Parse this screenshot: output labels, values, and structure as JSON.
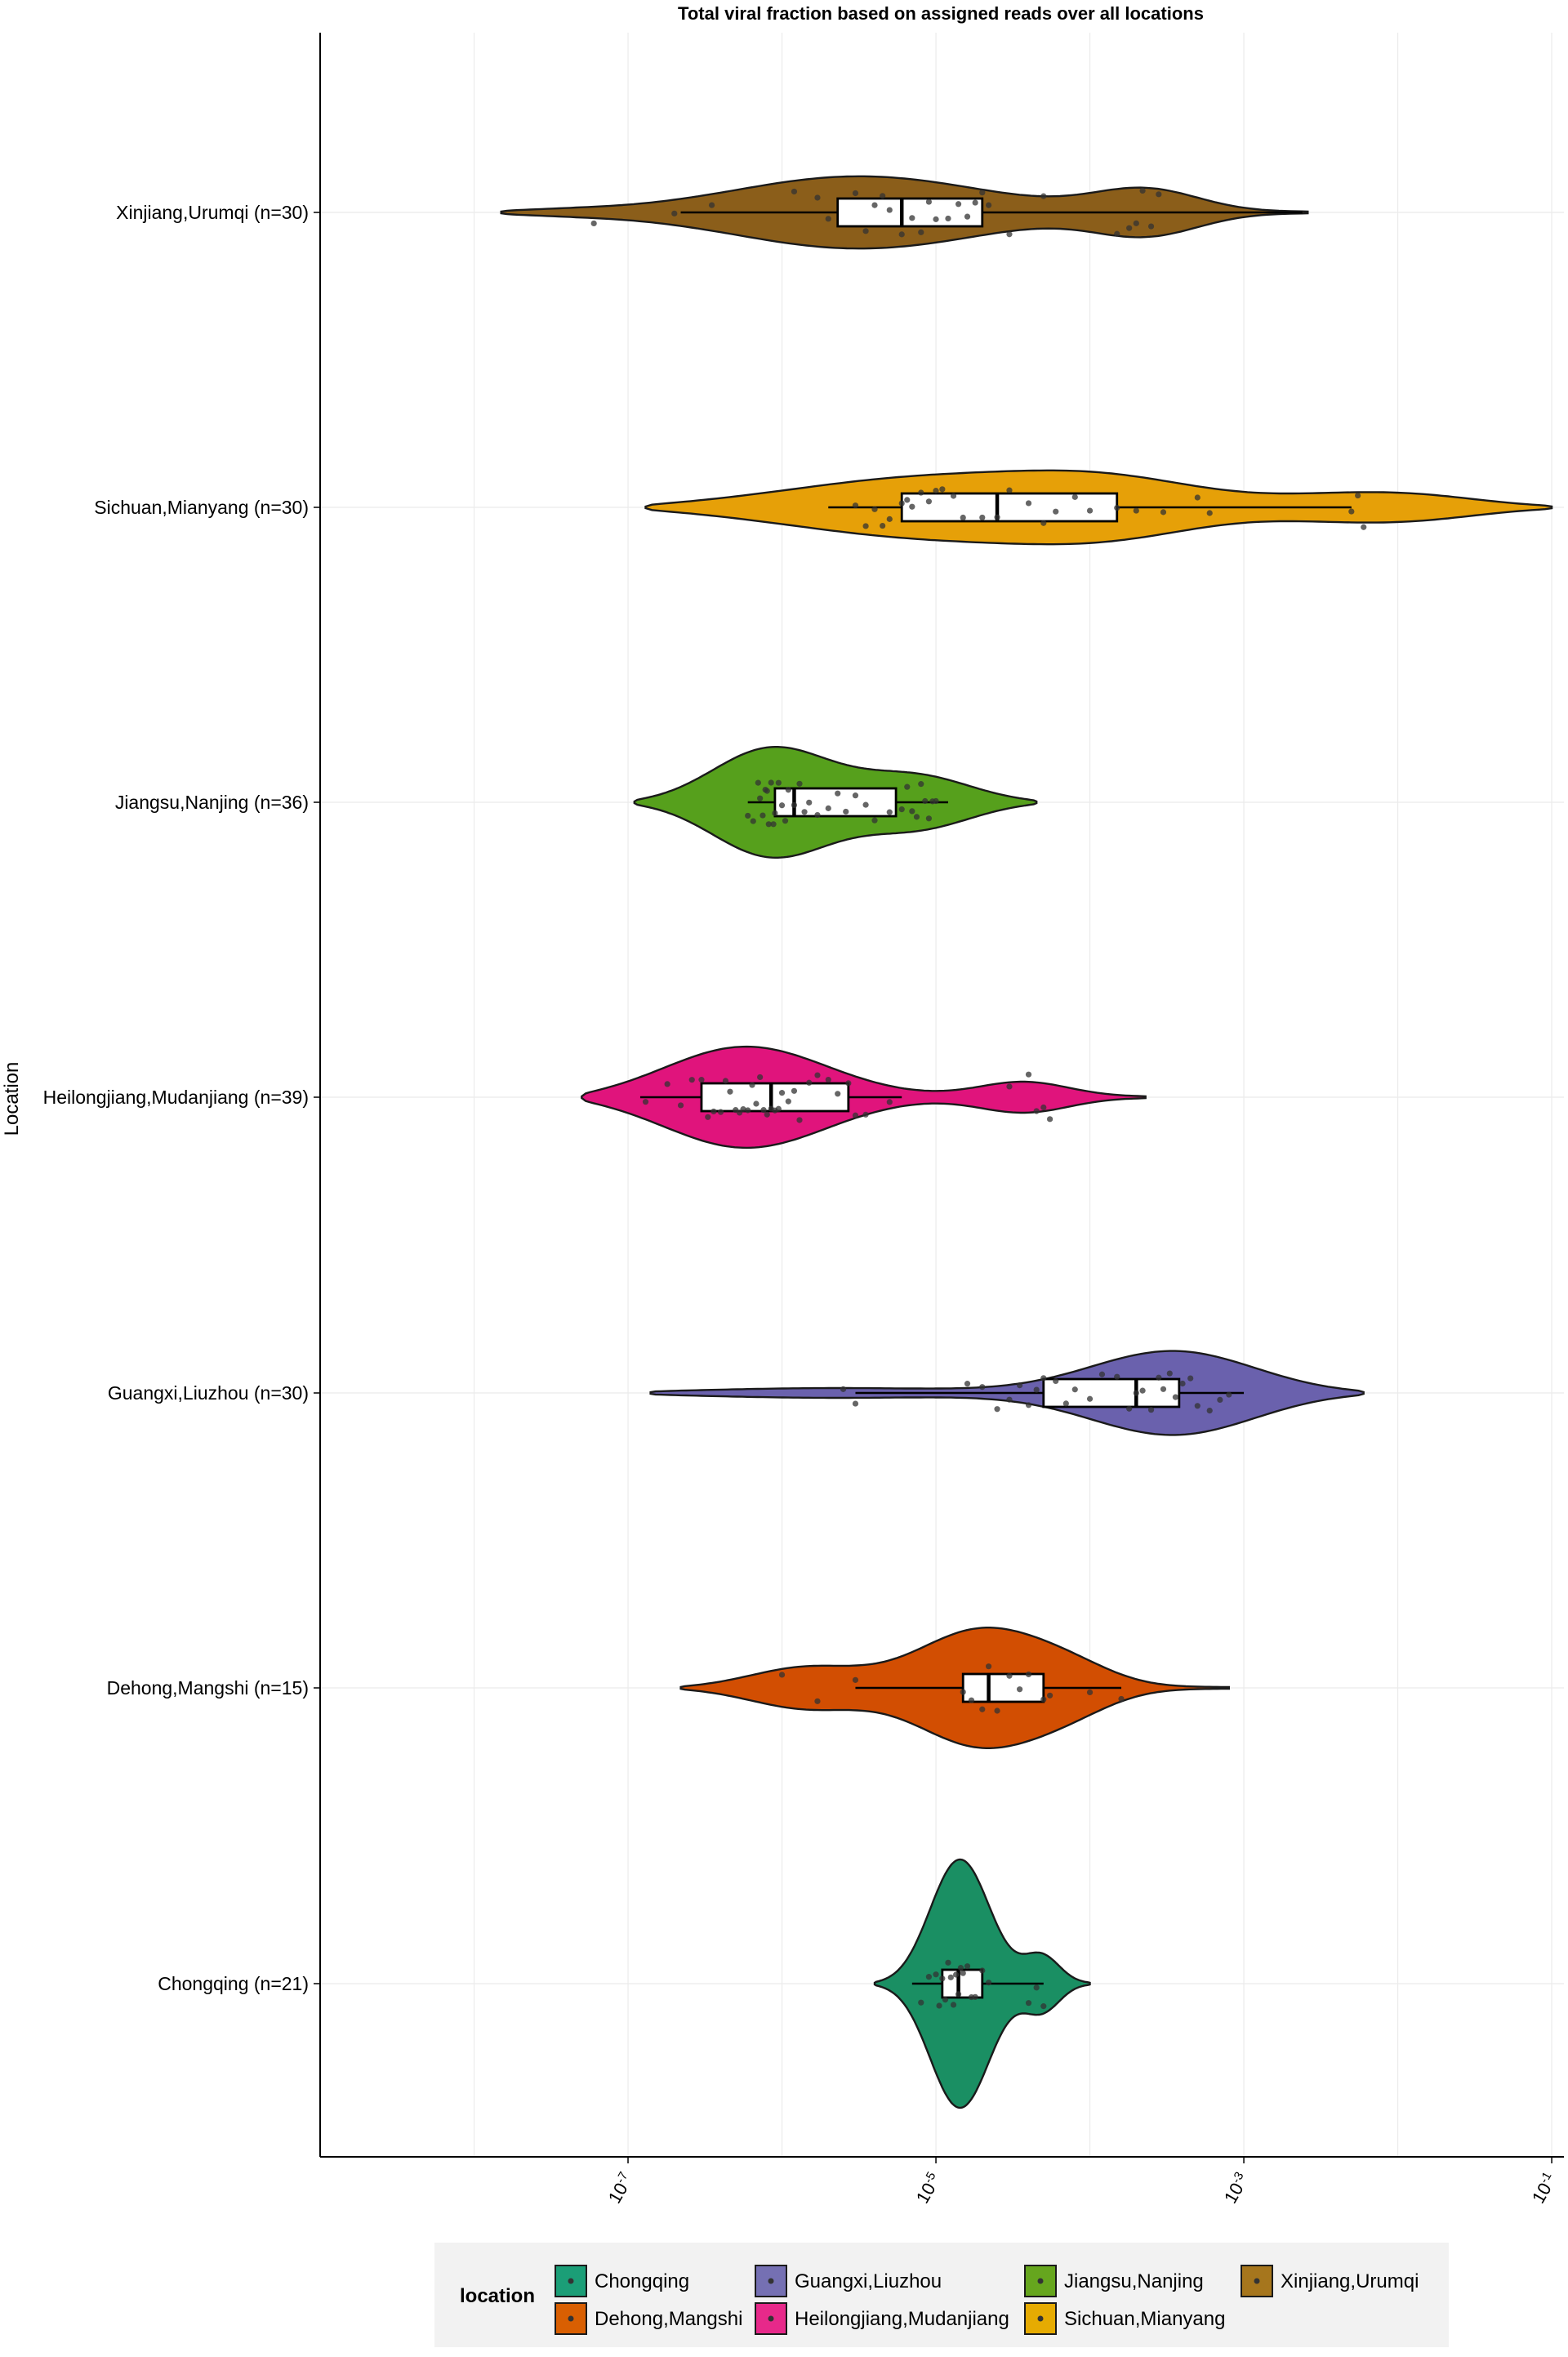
{
  "chart_data": {
    "type": "violin",
    "title": "Total viral fraction based on assigned reads over all locations",
    "xlabel": "",
    "ylabel": "Location",
    "x_scale": "log10",
    "xlim": [
      1e-09,
      0.12
    ],
    "x_ticks": [
      1e-07,
      1e-05,
      0.001,
      0.1
    ],
    "x_tick_base": "10",
    "x_tick_exponents": [
      "-7",
      "-5",
      "-3",
      "-1"
    ],
    "grid": true,
    "legend": {
      "title": "location",
      "position": "bottom",
      "entries": [
        {
          "name": "Chongqing",
          "color": "#1b9e77"
        },
        {
          "name": "Dehong,Mangshi",
          "color": "#d95f02"
        },
        {
          "name": "Guangxi,Liuzhou",
          "color": "#7570b3"
        },
        {
          "name": "Heilongjiang,Mudanjiang",
          "color": "#e7298a"
        },
        {
          "name": "Jiangsu,Nanjing",
          "color": "#66a61e"
        },
        {
          "name": "Sichuan,Mianyang",
          "color": "#e6ab02"
        },
        {
          "name": "Xinjiang,Urumqi",
          "color": "#a6761d"
        }
      ]
    },
    "series": [
      {
        "name": "Xinjiang,Urumqi",
        "label": "Xinjiang,Urumqi (n=30)",
        "color": "#8b5e1a",
        "range": [
          1.5e-08,
          0.0026
        ],
        "density_peaks": [
          {
            "at": 3e-06,
            "height": 0.62,
            "width": 0.85
          },
          {
            "at": 0.00025,
            "height": 0.45,
            "width": 0.35
          },
          {
            "at": 3e-08,
            "height": 0.05,
            "width": 0.4
          }
        ],
        "box": {
          "q1": 2.3e-06,
          "median": 6e-06,
          "q3": 2e-05,
          "whisker_low": 2.2e-07,
          "whisker_high": 0.0024
        },
        "points": [
          6e-08,
          2e-07,
          3.5e-07,
          1.2e-06,
          1.7e-06,
          2e-06,
          3e-06,
          3.5e-06,
          4e-06,
          4.5e-06,
          5e-06,
          6e-06,
          7e-06,
          8e-06,
          9e-06,
          1e-05,
          1.2e-05,
          1.4e-05,
          1.6e-05,
          1.8e-05,
          2e-05,
          2.2e-05,
          3e-05,
          5e-05,
          0.00015,
          0.00018,
          0.0002,
          0.00022,
          0.00025,
          0.00028
        ]
      },
      {
        "name": "Sichuan,Mianyang",
        "label": "Sichuan,Mianyang (n=30)",
        "color": "#e6a008",
        "range": [
          1.3e-07,
          0.1
        ],
        "density_peaks": [
          {
            "at": 8e-06,
            "height": 0.55,
            "width": 1.0
          },
          {
            "at": 0.00015,
            "height": 0.32,
            "width": 0.6
          },
          {
            "at": 0.006,
            "height": 0.22,
            "width": 0.55
          },
          {
            "at": 0.02,
            "height": 0.12,
            "width": 0.45
          }
        ],
        "box": {
          "q1": 6e-06,
          "median": 2.5e-05,
          "q3": 0.00015,
          "whisker_low": 2e-06,
          "whisker_high": 0.005
        },
        "points": [
          3e-06,
          3.5e-06,
          4e-06,
          4.5e-06,
          5e-06,
          6e-06,
          6.5e-06,
          7e-06,
          8e-06,
          9e-06,
          1e-05,
          1.1e-05,
          1.3e-05,
          1.5e-05,
          2e-05,
          2.5e-05,
          3e-05,
          4e-05,
          5e-05,
          6e-05,
          8e-05,
          0.0001,
          0.00015,
          0.0002,
          0.0003,
          0.0005,
          0.0006,
          0.005,
          0.0055,
          0.006
        ]
      },
      {
        "name": "Jiangsu,Nanjing",
        "label": "Jiangsu,Nanjing (n=36)",
        "color": "#56a01c",
        "range": [
          1.1e-07,
          4.5e-05
        ],
        "density_peaks": [
          {
            "at": 8e-07,
            "height": 0.98,
            "width": 0.4
          },
          {
            "at": 8e-06,
            "height": 0.48,
            "width": 0.38
          }
        ],
        "box": {
          "q1": 9e-07,
          "median": 1.2e-06,
          "q3": 5.5e-06,
          "whisker_low": 6e-07,
          "whisker_high": 1.2e-05
        },
        "points": [
          6e-07,
          6.5e-07,
          7e-07,
          7.2e-07,
          7.5e-07,
          7.8e-07,
          8e-07,
          8.2e-07,
          8.5e-07,
          8.8e-07,
          9e-07,
          9.5e-07,
          1e-06,
          1.05e-06,
          1.1e-06,
          1.2e-06,
          1.3e-06,
          1.4e-06,
          1.5e-06,
          1.7e-06,
          2e-06,
          2.3e-06,
          2.6e-06,
          3e-06,
          3.5e-06,
          4e-06,
          5e-06,
          6e-06,
          6.5e-06,
          7e-06,
          7.5e-06,
          8e-06,
          8.5e-06,
          9e-06,
          9.5e-06,
          1e-05
        ]
      },
      {
        "name": "Heilongjiang,Mudanjiang",
        "label": "Heilongjiang,Mudanjiang (n=39)",
        "color": "#e0147c",
        "range": [
          5e-08,
          0.00023
        ],
        "density_peaks": [
          {
            "at": 5e-07,
            "height": 0.95,
            "width": 0.55
          },
          {
            "at": 4e-05,
            "height": 0.3,
            "width": 0.3
          }
        ],
        "box": {
          "q1": 3e-07,
          "median": 8.5e-07,
          "q3": 2.7e-06,
          "whisker_low": 1.2e-07,
          "whisker_high": 6e-06
        },
        "points": [
          1.3e-07,
          1.8e-07,
          2.2e-07,
          2.6e-07,
          3e-07,
          3.3e-07,
          3.6e-07,
          4e-07,
          4.3e-07,
          4.6e-07,
          5e-07,
          5.3e-07,
          5.6e-07,
          6e-07,
          6.4e-07,
          6.8e-07,
          7.2e-07,
          7.6e-07,
          8e-07,
          8.5e-07,
          9e-07,
          9.5e-07,
          1e-06,
          1.1e-06,
          1.2e-06,
          1.3e-06,
          1.5e-06,
          1.7e-06,
          2e-06,
          2.3e-06,
          2.7e-06,
          3e-06,
          3.5e-06,
          5e-06,
          3e-05,
          4e-05,
          4.5e-05,
          5e-05,
          5.5e-05
        ]
      },
      {
        "name": "Guangxi,Liuzhou",
        "label": "Guangxi,Liuzhou (n=30)",
        "color": "#6a61ad",
        "range": [
          1.4e-07,
          0.006
        ],
        "density_peaks": [
          {
            "at": 0.0004,
            "height": 0.8,
            "width": 0.55
          },
          {
            "at": 1.5e-06,
            "height": 0.08,
            "width": 0.9
          }
        ],
        "box": {
          "q1": 5e-05,
          "median": 0.0002,
          "q3": 0.00038,
          "whisker_low": 3e-06,
          "whisker_high": 0.001
        },
        "points": [
          2.5e-06,
          3e-06,
          1.6e-05,
          2e-05,
          2.5e-05,
          3e-05,
          3.5e-05,
          4e-05,
          4.5e-05,
          5e-05,
          6e-05,
          7e-05,
          8e-05,
          0.0001,
          0.00012,
          0.00015,
          0.00018,
          0.0002,
          0.00022,
          0.00025,
          0.00028,
          0.0003,
          0.00033,
          0.00036,
          0.0004,
          0.00045,
          0.0005,
          0.0006,
          0.0007,
          0.0008
        ]
      },
      {
        "name": "Dehong,Mangshi",
        "label": "Dehong,Mangshi (n=15)",
        "color": "#d24e02",
        "range": [
          2.2e-07,
          0.0008
        ],
        "density_peaks": [
          {
            "at": 2e-05,
            "height": 1.0,
            "width": 0.42
          },
          {
            "at": 1.3e-06,
            "height": 0.4,
            "width": 0.38
          },
          {
            "at": 8e-05,
            "height": 0.28,
            "width": 0.3
          }
        ],
        "box": {
          "q1": 1.5e-05,
          "median": 2.2e-05,
          "q3": 5e-05,
          "whisker_low": 3e-06,
          "whisker_high": 0.00016
        },
        "points": [
          1e-06,
          1.7e-06,
          3e-06,
          1.5e-05,
          1.7e-05,
          2e-05,
          2.2e-05,
          2.5e-05,
          3e-05,
          3.5e-05,
          4e-05,
          5e-05,
          5.5e-05,
          0.0001,
          0.00016
        ]
      },
      {
        "name": "Chongqing",
        "label": "Chongqing (n=21)",
        "color": "#1a8f63",
        "range": [
          4e-06,
          0.0001
        ],
        "density_peaks": [
          {
            "at": 1.4e-05,
            "height": 2.2,
            "width": 0.2
          },
          {
            "at": 5e-05,
            "height": 0.55,
            "width": 0.12
          }
        ],
        "box": {
          "q1": 1.1e-05,
          "median": 1.4e-05,
          "q3": 2e-05,
          "whisker_low": 7e-06,
          "whisker_high": 5e-05
        },
        "points": [
          8e-06,
          9e-06,
          1e-05,
          1.05e-05,
          1.1e-05,
          1.15e-05,
          1.2e-05,
          1.25e-05,
          1.3e-05,
          1.35e-05,
          1.4e-05,
          1.45e-05,
          1.5e-05,
          1.6e-05,
          1.7e-05,
          1.8e-05,
          2e-05,
          2.2e-05,
          4e-05,
          4.5e-05,
          5e-05
        ]
      }
    ]
  }
}
